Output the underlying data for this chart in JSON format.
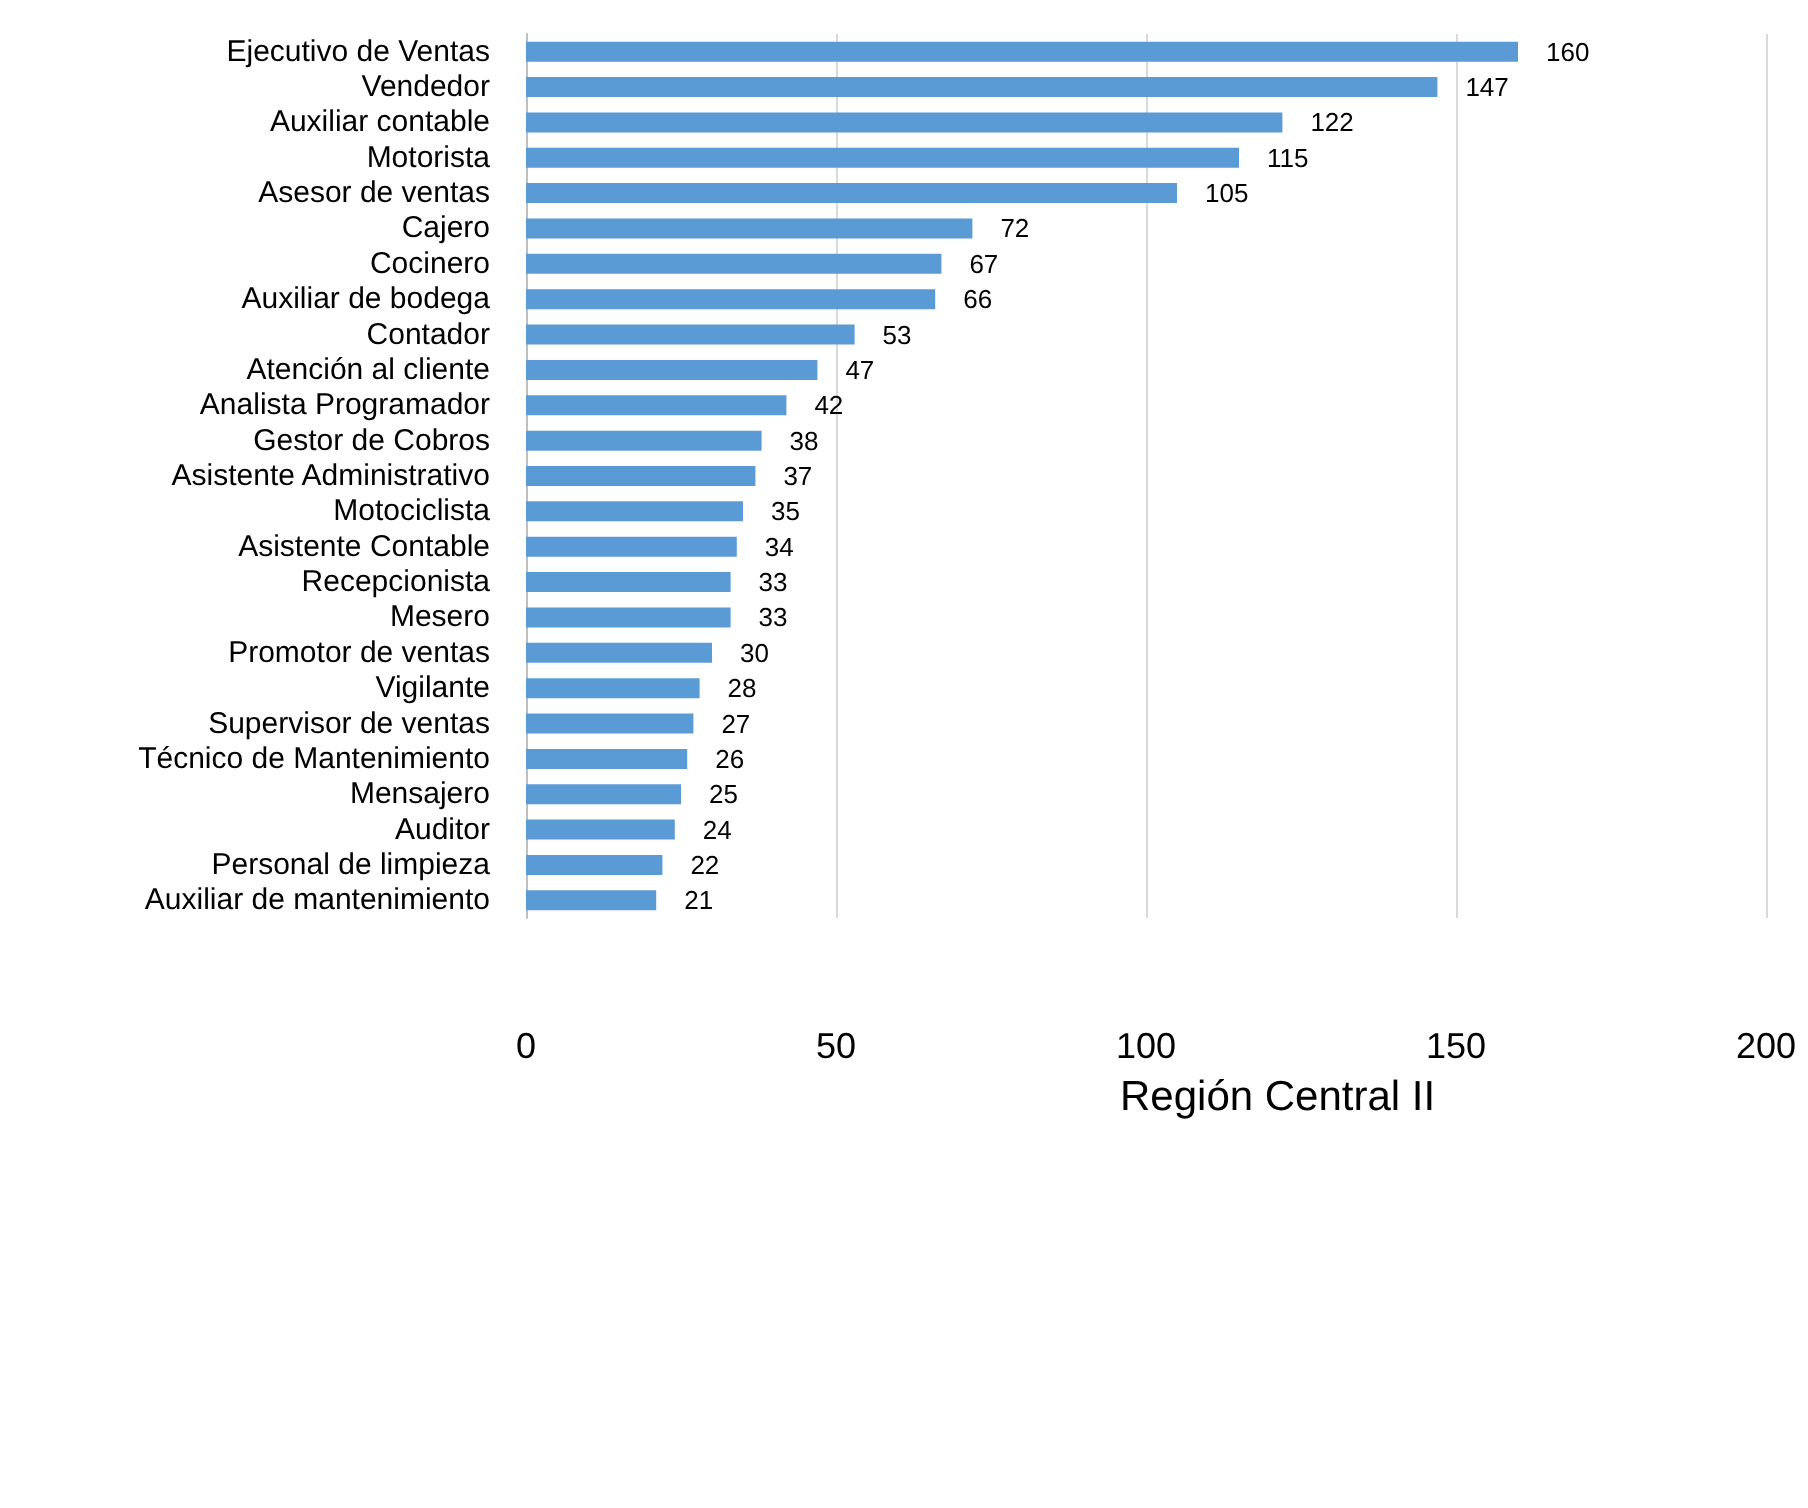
{
  "chart_data": {
    "type": "bar",
    "orientation": "horizontal",
    "categories": [
      "Ejecutivo de Ventas",
      "Vendedor",
      "Auxiliar contable",
      "Motorista",
      "Asesor de ventas",
      "Cajero",
      "Cocinero",
      "Auxiliar de bodega",
      "Contador",
      "Atención al cliente",
      "Analista Programador",
      "Gestor de Cobros",
      "Asistente Administrativo",
      "Motociclista",
      "Asistente Contable",
      "Recepcionista",
      "Mesero",
      "Promotor de ventas",
      "Vigilante",
      "Supervisor de ventas",
      "Técnico de Mantenimiento",
      "Mensajero",
      "Auditor",
      "Personal de limpieza",
      "Auxiliar de mantenimiento"
    ],
    "values": [
      160,
      147,
      122,
      115,
      105,
      72,
      67,
      66,
      53,
      47,
      42,
      38,
      37,
      35,
      34,
      33,
      33,
      30,
      28,
      27,
      26,
      25,
      24,
      22,
      21
    ],
    "color": "#5b9bd5",
    "data_labels": true,
    "grid": "x",
    "xlim": [
      0,
      200
    ],
    "xticks": [
      0,
      50,
      100,
      150,
      200
    ],
    "annotations": [
      "Región Central II"
    ]
  }
}
